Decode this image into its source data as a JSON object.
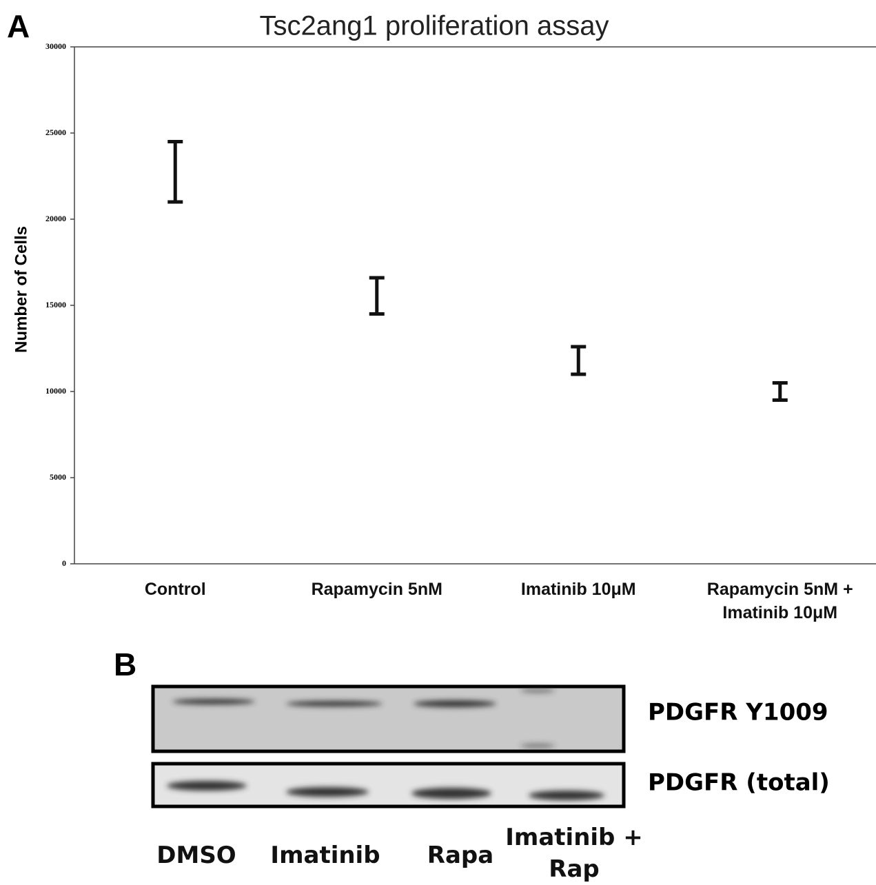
{
  "panel_a": {
    "label": "A"
  },
  "chart_data": {
    "type": "errorbar",
    "title": "Tsc2ang1 proliferation assay",
    "y_label": "Number of Cells",
    "categories": [
      "Control",
      "Rapamycin 5nM",
      "Imatinib 10μM",
      "Rapamycin 5nM + Imatinib 10μM"
    ],
    "values": [
      22750,
      15550,
      11800,
      10000
    ],
    "errors": [
      1750,
      1050,
      800,
      500
    ],
    "color": "#111111",
    "ylim": [
      0,
      30000
    ],
    "yticks": [
      0,
      5000,
      10000,
      15000,
      20000,
      25000,
      30000
    ],
    "grid": false
  },
  "panel_b": {
    "label": "B",
    "rows": [
      "PDGFR Y1009",
      "PDGFR (total)"
    ],
    "lanes": [
      "DMSO",
      "Imatinib",
      "Rapa",
      "Imatinib + Rap"
    ]
  }
}
